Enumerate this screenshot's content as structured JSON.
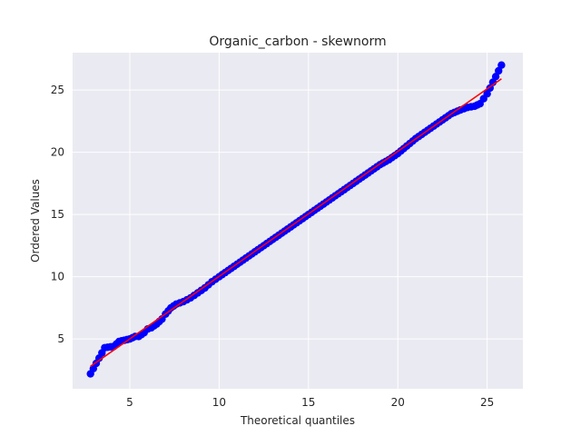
{
  "chart_data": {
    "type": "scatter",
    "title": "Organic_carbon - skewnorm",
    "xlabel": "Theoretical quantiles",
    "ylabel": "Ordered Values",
    "xlim": [
      1.8,
      27.0
    ],
    "ylim": [
      1.0,
      28.0
    ],
    "xticks": [
      5,
      10,
      15,
      20,
      25
    ],
    "yticks": [
      5,
      10,
      15,
      20,
      25
    ],
    "grid": true,
    "background": "#eaeaf2",
    "grid_color": "#ffffff",
    "point_color": "#0000ff",
    "line_color": "#ff0000",
    "fit_line": {
      "x": [
        2.8,
        25.8
      ],
      "y": [
        2.8,
        25.9
      ]
    },
    "points": [
      [
        2.8,
        2.2
      ],
      [
        3.6,
        4.3
      ],
      [
        4.1,
        4.4
      ],
      [
        4.4,
        4.8
      ],
      [
        4.7,
        4.9
      ],
      [
        5.0,
        5.0
      ],
      [
        5.3,
        5.2
      ],
      [
        5.5,
        5.2
      ],
      [
        5.8,
        5.5
      ],
      [
        6.0,
        5.8
      ],
      [
        6.2,
        5.9
      ],
      [
        6.5,
        6.2
      ],
      [
        6.8,
        6.6
      ],
      [
        7.0,
        7.0
      ],
      [
        7.3,
        7.5
      ],
      [
        7.6,
        7.8
      ],
      [
        8.0,
        8.0
      ],
      [
        8.4,
        8.3
      ],
      [
        8.8,
        8.7
      ],
      [
        9.2,
        9.1
      ],
      [
        9.6,
        9.6
      ],
      [
        10.0,
        10.0
      ],
      [
        10.5,
        10.5
      ],
      [
        11.0,
        11.0
      ],
      [
        11.5,
        11.5
      ],
      [
        12.0,
        12.0
      ],
      [
        12.5,
        12.5
      ],
      [
        13.0,
        13.0
      ],
      [
        13.5,
        13.5
      ],
      [
        14.0,
        14.0
      ],
      [
        14.5,
        14.5
      ],
      [
        15.0,
        15.0
      ],
      [
        15.5,
        15.5
      ],
      [
        16.0,
        16.0
      ],
      [
        16.5,
        16.5
      ],
      [
        17.0,
        17.0
      ],
      [
        17.5,
        17.5
      ],
      [
        18.0,
        18.0
      ],
      [
        18.5,
        18.5
      ],
      [
        19.0,
        19.0
      ],
      [
        19.5,
        19.4
      ],
      [
        20.0,
        19.9
      ],
      [
        20.5,
        20.5
      ],
      [
        21.0,
        21.1
      ],
      [
        21.5,
        21.6
      ],
      [
        22.0,
        22.1
      ],
      [
        22.5,
        22.6
      ],
      [
        23.0,
        23.1
      ],
      [
        23.5,
        23.4
      ],
      [
        23.9,
        23.6
      ],
      [
        24.3,
        23.7
      ],
      [
        24.6,
        23.9
      ],
      [
        25.0,
        24.7
      ],
      [
        25.8,
        27.0
      ]
    ]
  }
}
